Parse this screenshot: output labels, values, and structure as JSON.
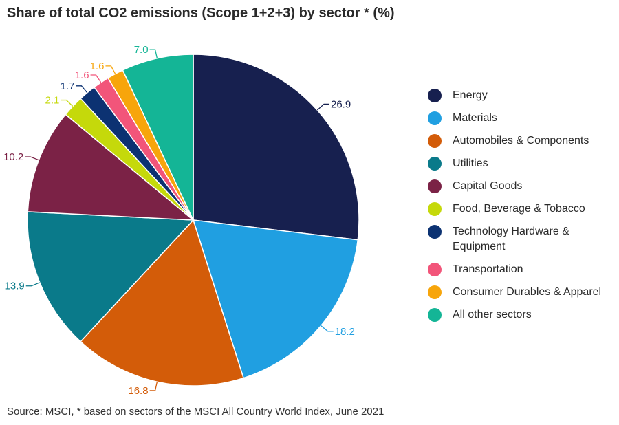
{
  "chart_data": {
    "type": "pie",
    "title": "Share of total CO2 emissions (Scope 1+2+3) by sector * (%)",
    "source": "Source:  MSCI, * based on sectors of the MSCI All Country World Index, June 2021",
    "legend_position": "right",
    "slices": [
      {
        "name": "Energy",
        "value": 26.9,
        "label": "26.9",
        "color": "#17204f"
      },
      {
        "name": "Materials",
        "value": 18.2,
        "label": "18.2",
        "color": "#209fe1"
      },
      {
        "name": "Automobiles & Components",
        "value": 16.8,
        "label": "16.8",
        "color": "#d35c09"
      },
      {
        "name": "Utilities",
        "value": 13.9,
        "label": "13.9",
        "color": "#0a7a8a"
      },
      {
        "name": "Capital Goods",
        "value": 10.2,
        "label": "10.2",
        "color": "#7b2246"
      },
      {
        "name": "Food, Beverage & Tobacco",
        "value": 2.1,
        "label": "2.1",
        "color": "#c5d90b"
      },
      {
        "name": "Technology Hardware & Equipment",
        "value": 1.7,
        "label": "1.7",
        "color": "#0c3272"
      },
      {
        "name": "Transportation",
        "value": 1.6,
        "label": "1.6",
        "color": "#f2557a"
      },
      {
        "name": "Consumer Durables & Apparel",
        "value": 1.6,
        "label": "1.6",
        "color": "#f7a50b"
      },
      {
        "name": "All other sectors",
        "value": 7.0,
        "label": "7.0",
        "color": "#14b596"
      }
    ]
  }
}
